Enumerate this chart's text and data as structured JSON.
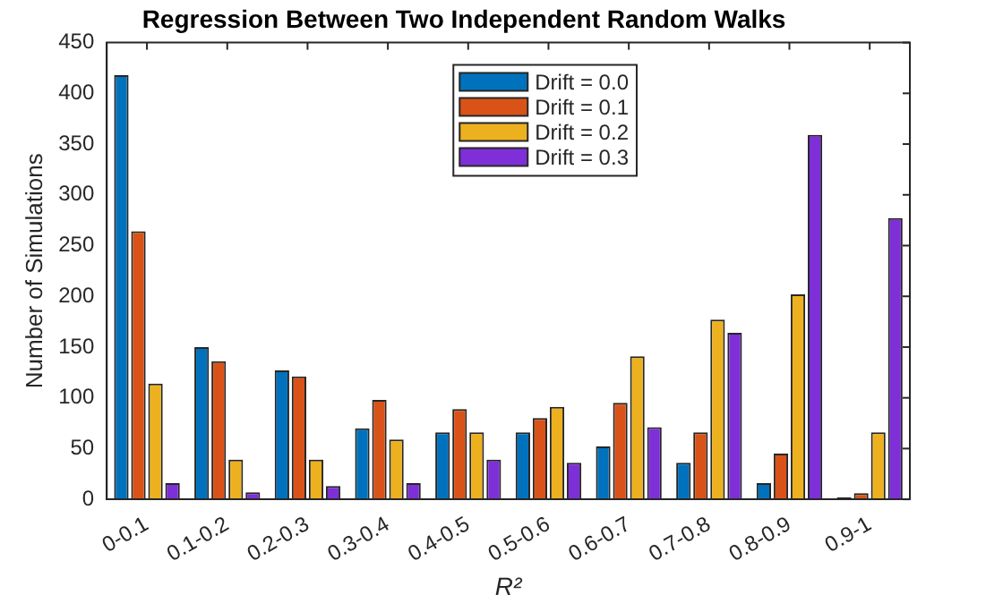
{
  "chart_data": {
    "type": "bar",
    "title": "Regression Between Two Independent Random Walks",
    "xlabel": "R²",
    "ylabel": "Number of Simulations",
    "categories": [
      "0-0.1",
      "0.1-0.2",
      "0.2-0.3",
      "0.3-0.4",
      "0.4-0.5",
      "0.5-0.6",
      "0.6-0.7",
      "0.7-0.8",
      "0.8-0.9",
      "0.9-1"
    ],
    "series": [
      {
        "name": "Drift = 0.0",
        "color": "#0072bd",
        "values": [
          418,
          150,
          127,
          70,
          66,
          66,
          52,
          36,
          16,
          2
        ]
      },
      {
        "name": "Drift = 0.1",
        "color": "#d95319",
        "values": [
          264,
          136,
          121,
          98,
          89,
          80,
          95,
          66,
          45,
          6
        ]
      },
      {
        "name": "Drift = 0.2",
        "color": "#edb120",
        "values": [
          114,
          39,
          39,
          59,
          66,
          91,
          141,
          177,
          202,
          66
        ]
      },
      {
        "name": "Drift = 0.3",
        "color": "#7e2fd8",
        "values": [
          16,
          7,
          13,
          16,
          39,
          36,
          71,
          164,
          359,
          277
        ]
      }
    ],
    "ylim": [
      0,
      450
    ],
    "yticks": [
      0,
      50,
      100,
      150,
      200,
      250,
      300,
      350,
      400,
      450
    ],
    "grid": false,
    "legend": "top"
  }
}
